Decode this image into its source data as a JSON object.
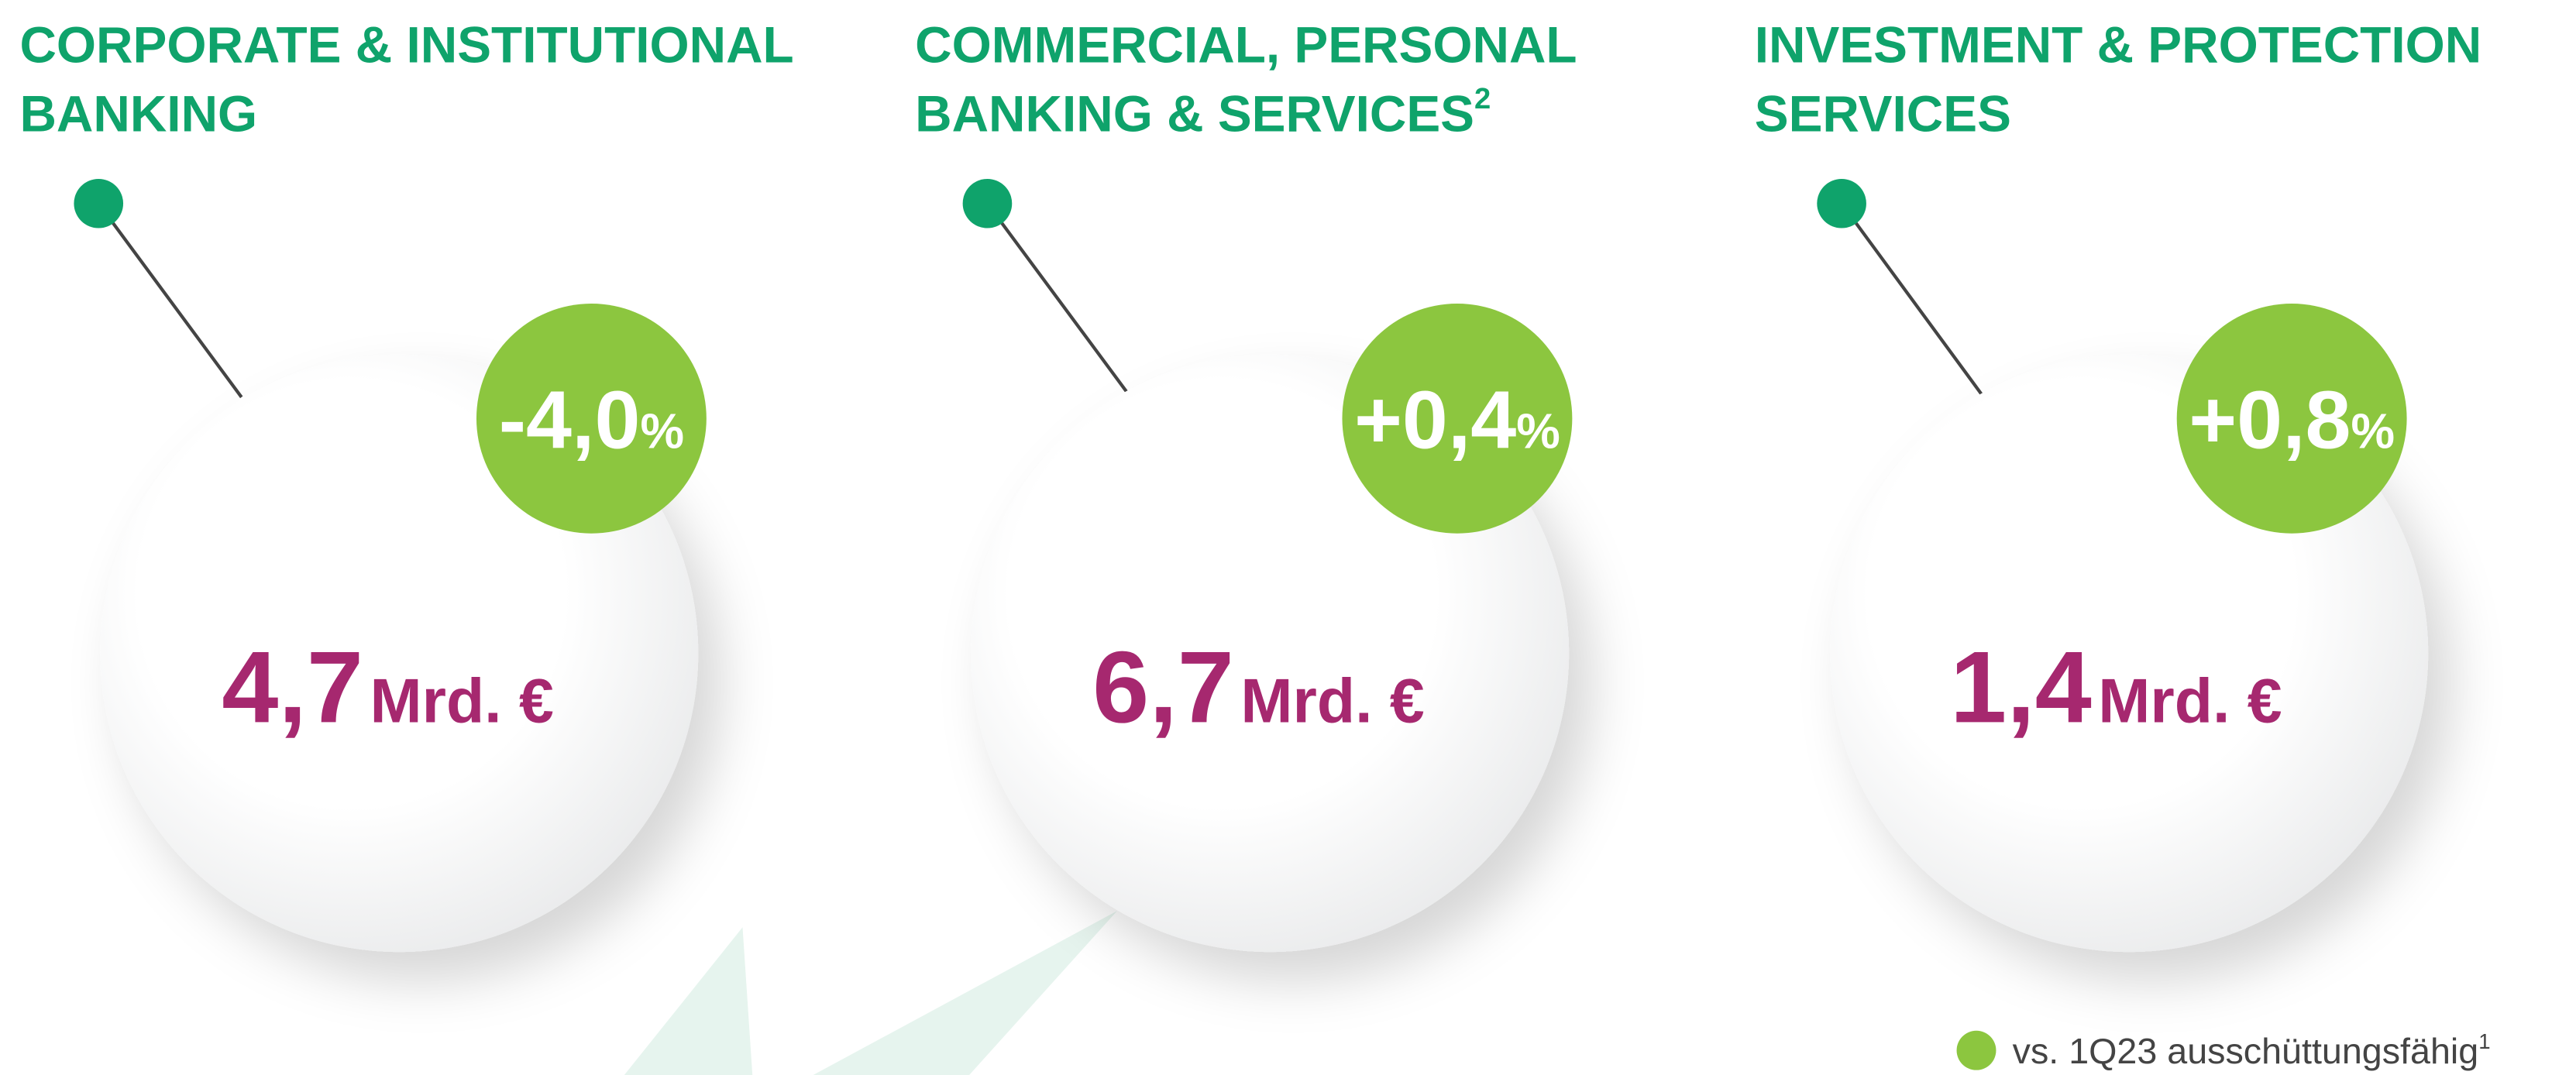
{
  "segments": [
    {
      "title_lines": [
        "CORPORATE & INSTITUTIONAL",
        "BANKING"
      ],
      "footnote": null,
      "value": "4,7",
      "unit": "Mrd. €",
      "change": "-4,0",
      "change_unit": "%"
    },
    {
      "title_lines": [
        "COMMERCIAL, PERSONAL",
        "BANKING & SERVICES"
      ],
      "footnote": "2",
      "value": "6,7",
      "unit": "Mrd. €",
      "change": "+0,4",
      "change_unit": "%"
    },
    {
      "title_lines": [
        "INVESTMENT & PROTECTION",
        "SERVICES"
      ],
      "footnote": null,
      "value": "1,4",
      "unit": "Mrd. €",
      "change": "+0,8",
      "change_unit": "%"
    }
  ],
  "legend": {
    "label": "vs. 1Q23 ausschüttungsfähig",
    "footnote": "1"
  }
}
